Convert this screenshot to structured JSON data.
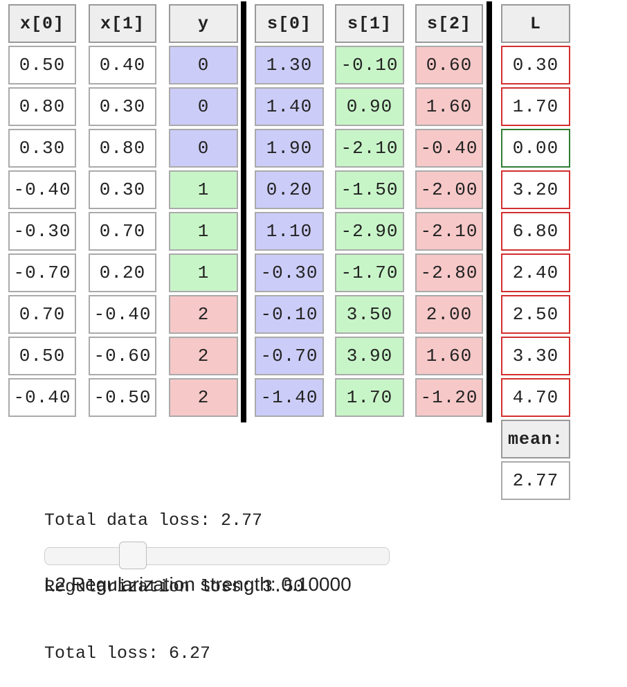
{
  "headers": {
    "x0": "x[0]",
    "x1": "x[1]",
    "y": "y",
    "s0": "s[0]",
    "s1": "s[1]",
    "s2": "s[2]",
    "L": "L"
  },
  "rows": [
    {
      "x0": "0.50",
      "x1": "0.40",
      "y": "0",
      "s0": "1.30",
      "s1": "-0.10",
      "s2": "0.60",
      "L": "0.30"
    },
    {
      "x0": "0.80",
      "x1": "0.30",
      "y": "0",
      "s0": "1.40",
      "s1": "0.90",
      "s2": "1.60",
      "L": "1.70"
    },
    {
      "x0": "0.30",
      "x1": "0.80",
      "y": "0",
      "s0": "1.90",
      "s1": "-2.10",
      "s2": "-0.40",
      "L": "0.00"
    },
    {
      "x0": "-0.40",
      "x1": "0.30",
      "y": "1",
      "s0": "0.20",
      "s1": "-1.50",
      "s2": "-2.00",
      "L": "3.20"
    },
    {
      "x0": "-0.30",
      "x1": "0.70",
      "y": "1",
      "s0": "1.10",
      "s1": "-2.90",
      "s2": "-2.10",
      "L": "6.80"
    },
    {
      "x0": "-0.70",
      "x1": "0.20",
      "y": "1",
      "s0": "-0.30",
      "s1": "-1.70",
      "s2": "-2.80",
      "L": "2.40"
    },
    {
      "x0": "0.70",
      "x1": "-0.40",
      "y": "2",
      "s0": "-0.10",
      "s1": "3.50",
      "s2": "2.00",
      "L": "2.50"
    },
    {
      "x0": "0.50",
      "x1": "-0.60",
      "y": "2",
      "s0": "-0.70",
      "s1": "3.90",
      "s2": "1.60",
      "L": "3.30"
    },
    {
      "x0": "-0.40",
      "x1": "-0.50",
      "y": "2",
      "s0": "-1.40",
      "s1": "1.70",
      "s2": "-1.20",
      "L": "4.70"
    }
  ],
  "mean": {
    "label": "mean:",
    "value": "2.77"
  },
  "summary": {
    "data_loss": "Total data loss: 2.77",
    "reg_loss": "Regularization loss: 3.50",
    "total_loss": "Total loss: 6.27"
  },
  "slider": {
    "label": "L2 Regularization strength: 0.10000",
    "value": 0.1
  },
  "colors": {
    "class0": "#ccccf8",
    "class1": "#c8f5c8",
    "class2": "#f7c8c8",
    "loss_positive_border": "#d32f2f",
    "loss_zero_border": "#2e7d32"
  }
}
